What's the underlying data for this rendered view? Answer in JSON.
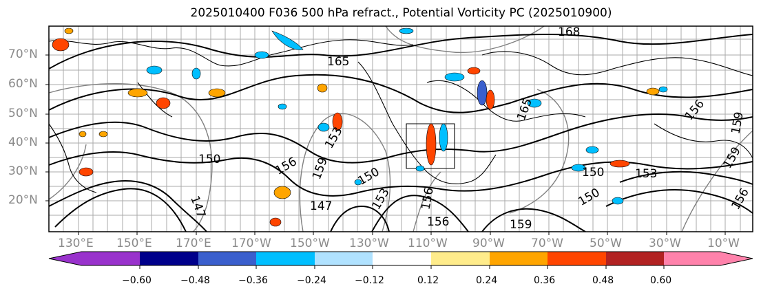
{
  "title": "2025010400 F036 500 hPa refract., Potential Vorticity PC (2025010900)",
  "map": {
    "lat_labels": [
      "70°N",
      "60°N",
      "50°N",
      "40°N",
      "30°N",
      "20°N"
    ],
    "lon_labels": [
      "130°E",
      "150°E",
      "170°E",
      "170°W",
      "150°W",
      "130°W",
      "110°W",
      "90°W",
      "70°W",
      "50°W",
      "30°W",
      "10°W"
    ],
    "contour_labels": [
      "165",
      "168",
      "150",
      "156",
      "159",
      "153",
      "147",
      "165",
      "150",
      "153",
      "156",
      "159",
      "150",
      "156",
      "159",
      "150",
      "147",
      "153",
      "156",
      "159",
      "156"
    ],
    "coastline_color": "#000000",
    "grid_color": "#aaaaaa"
  },
  "colorbar": {
    "ticks": [
      "−0.60",
      "−0.48",
      "−0.36",
      "−0.24",
      "−0.12",
      "0.12",
      "0.24",
      "0.36",
      "0.48",
      "0.60"
    ],
    "colors": [
      "#9932cc",
      "#00008b",
      "#3a5fcd",
      "#00bfff",
      "#b0e2ff",
      "#ffffff",
      "#ffec8b",
      "#ffa500",
      "#ff4500",
      "#b22222",
      "#ff82ab"
    ]
  }
}
